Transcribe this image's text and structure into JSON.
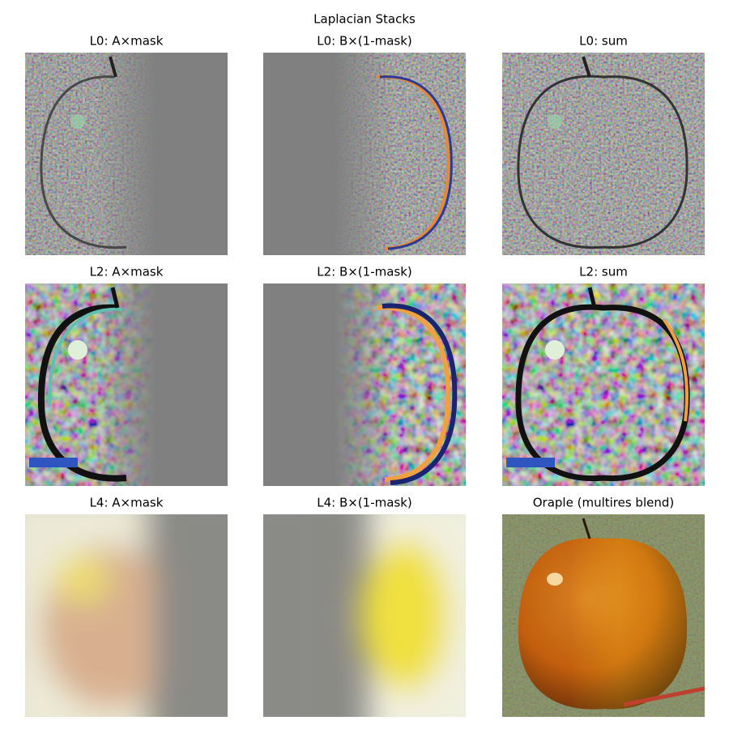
{
  "title": "Laplacian Stacks",
  "panels": [
    {
      "title": "L0: A×mask"
    },
    {
      "title": "L0: B×(1-mask)"
    },
    {
      "title": "L0: sum"
    },
    {
      "title": "L2: A×mask"
    },
    {
      "title": "L2: B×(1-mask)"
    },
    {
      "title": "L2: sum"
    },
    {
      "title": "L4: A×mask"
    },
    {
      "title": "L4: B×(1-mask)"
    },
    {
      "title": "Oraple (multires blend)"
    }
  ]
}
